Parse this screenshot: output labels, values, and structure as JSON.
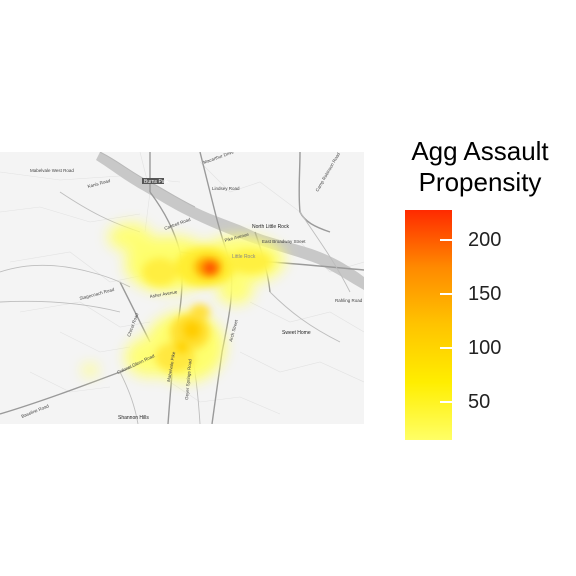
{
  "legend": {
    "title_line1": "Agg Assault",
    "title_line2": "Propensity",
    "ticks": [
      {
        "value": 50,
        "label": "50"
      },
      {
        "value": 100,
        "label": "100"
      },
      {
        "value": 150,
        "label": "150"
      },
      {
        "value": 200,
        "label": "200"
      }
    ],
    "min": 15,
    "max": 228,
    "colors": [
      "#ffff66",
      "#ffee00",
      "#ffc400",
      "#ff8a00",
      "#ff2a00"
    ]
  },
  "map": {
    "places": [
      {
        "label": "Sweet Home"
      },
      {
        "label": "Shannon Hills"
      },
      {
        "label": "North Little Rock"
      },
      {
        "label": "Little Rock"
      },
      {
        "label": "Burns Park"
      }
    ],
    "roads": [
      {
        "label": "East Broadway Street"
      },
      {
        "label": "Macarthur Drive"
      },
      {
        "label": "Asher Avenue"
      },
      {
        "label": "Arch Street"
      },
      {
        "label": "Baseline Road"
      },
      {
        "label": "Geyer Springs Road"
      },
      {
        "label": "Colonel Glenn Road"
      },
      {
        "label": "Cantrell Road"
      },
      {
        "label": "Camp Robinson Road"
      },
      {
        "label": "Pike Avenue"
      },
      {
        "label": "Lindsey Road"
      },
      {
        "label": "Chicot Road"
      },
      {
        "label": "Mabelvale Pike"
      },
      {
        "label": "Stagecoach Road"
      },
      {
        "label": "Mabelvale West Road"
      },
      {
        "label": "Kanis Road"
      },
      {
        "label": "Rahling Road"
      }
    ]
  }
}
